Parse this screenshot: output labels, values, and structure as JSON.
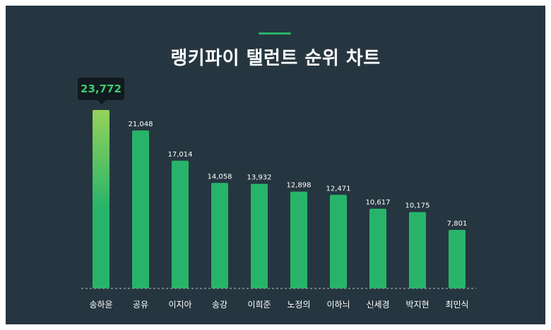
{
  "chart_data": {
    "type": "bar",
    "title": "랭키파이 탤런트 순위 차트",
    "categories": [
      "송하윤",
      "공유",
      "이지아",
      "송강",
      "이희준",
      "노정의",
      "이하늬",
      "신세경",
      "박지현",
      "최민식"
    ],
    "values": [
      23772,
      21048,
      17014,
      14058,
      13932,
      12898,
      12471,
      10617,
      10175,
      7801
    ],
    "value_labels": [
      "23,772",
      "21,048",
      "17,014",
      "14,058",
      "13,932",
      "12,898",
      "12,471",
      "10,617",
      "10,175",
      "7,801"
    ],
    "ylim": [
      0,
      23772
    ],
    "highlight_index": 0,
    "grid": false,
    "legend": "none"
  },
  "colors": {
    "background": "#263640",
    "bar": "#27b46a",
    "highlight_top": "#95d35a",
    "highlight_bottom": "#27b46a",
    "text": "#ffffff",
    "tooltip_bg": "#111a20",
    "tooltip_text": "#3ecb6e"
  }
}
